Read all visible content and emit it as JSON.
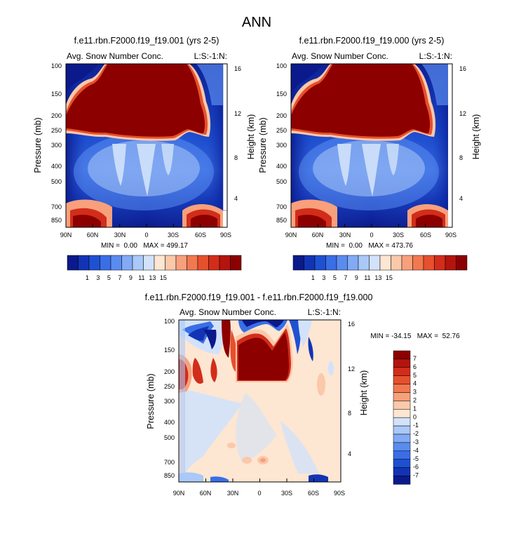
{
  "figure": {
    "title": "ANN"
  },
  "chart_data": [
    {
      "type": "heatmap",
      "id": "panel-1",
      "title": "f.e11.rbn.F2000.f19_f19.001 (yrs 2-5)",
      "left_label": "Avg. Snow Number Conc.",
      "right_label": "L:S:-1:N:",
      "xlabel": "",
      "ylabel": "Pressure (mb)",
      "y2label": "Height (km)",
      "x_ticks": [
        "90N",
        "60N",
        "30N",
        "0",
        "30S",
        "60S",
        "90S"
      ],
      "y_ticks": [
        "100",
        "150",
        "200",
        "250",
        "300",
        "400",
        "500",
        "700",
        "850"
      ],
      "y2_ticks": [
        "16",
        "12",
        "8",
        "4"
      ],
      "stats_text": "MIN =  0.00   MAX = 499.17",
      "levels": [
        "1",
        "3",
        "5",
        "7",
        "9",
        "11",
        "13",
        "15"
      ]
    },
    {
      "type": "heatmap",
      "id": "panel-2",
      "title": "f.e11.rbn.F2000.f19_f19.000 (yrs 2-5)",
      "left_label": "Avg. Snow Number Conc.",
      "right_label": "L:S:-1:N:",
      "xlabel": "",
      "ylabel": "Pressure (mb)",
      "y2label": "Height (km)",
      "x_ticks": [
        "90N",
        "60N",
        "30N",
        "0",
        "30S",
        "60S",
        "90S"
      ],
      "y_ticks": [
        "100",
        "150",
        "200",
        "250",
        "300",
        "400",
        "500",
        "700",
        "850"
      ],
      "y2_ticks": [
        "16",
        "12",
        "8",
        "4"
      ],
      "stats_text": "MIN =  0.00   MAX = 473.76",
      "levels": [
        "1",
        "3",
        "5",
        "7",
        "9",
        "11",
        "13",
        "15"
      ]
    },
    {
      "type": "heatmap",
      "id": "panel-diff",
      "title": "f.e11.rbn.F2000.f19_f19.001 - f.e11.rbn.F2000.f19_f19.000",
      "left_label": "Avg. Snow Number Conc.",
      "right_label": "L:S:-1:N:",
      "xlabel": "",
      "ylabel": "Pressure (mb)",
      "y2label": "Height (km)",
      "x_ticks": [
        "90N",
        "60N",
        "30N",
        "0",
        "30S",
        "60S",
        "90S"
      ],
      "y_ticks": [
        "100",
        "150",
        "200",
        "250",
        "300",
        "400",
        "500",
        "700",
        "850"
      ],
      "y2_ticks": [
        "16",
        "12",
        "8",
        "4"
      ],
      "stats_text": "MIN = -34.15   MAX =  52.76",
      "levels": [
        "7",
        "6",
        "5",
        "4",
        "3",
        "2",
        "1",
        "0",
        "-1",
        "-2",
        "-3",
        "-4",
        "-5",
        "-6",
        "-7"
      ]
    }
  ],
  "colors": {
    "abs_scale": [
      "#0a1a8c",
      "#1234b4",
      "#1e50d2",
      "#3a6ee6",
      "#5a8cf0",
      "#82aaf5",
      "#aac8f8",
      "#d2e2fa",
      "#fde6d2",
      "#fbc8aa",
      "#f8a07c",
      "#f27850",
      "#e6502d",
      "#d22d1a",
      "#b4140d",
      "#8c0000"
    ],
    "diff_scale": [
      "#8c0000",
      "#b4140d",
      "#d22d1a",
      "#e6502d",
      "#f27850",
      "#f8a07c",
      "#fbc8aa",
      "#fde6d2",
      "#d2e2fa",
      "#aac8f8",
      "#82aaf5",
      "#5a8cf0",
      "#3a6ee6",
      "#1e50d2",
      "#1234b4",
      "#0a1a8c"
    ]
  }
}
